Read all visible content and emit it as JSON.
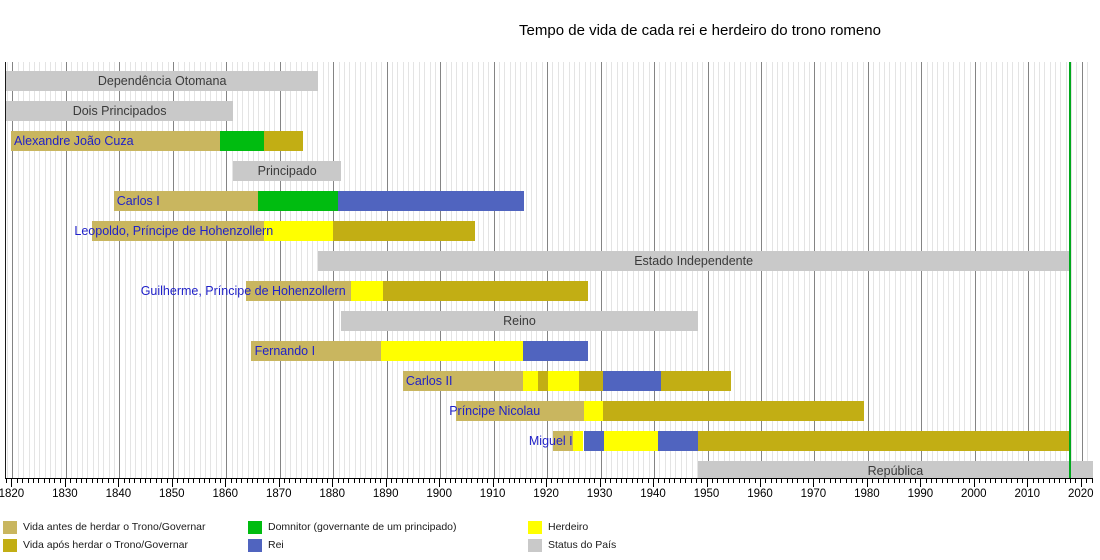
{
  "title": "Tempo de vida de cada rei e herdeiro do trono romeno",
  "chart_data": {
    "type": "timeline",
    "title": "Tempo de vida de cada rei e herdeiro do trono romeno",
    "axis": {
      "min_year": 1818.8,
      "max_year": 2022.1,
      "tick_years": [
        1820,
        1830,
        1840,
        1850,
        1860,
        1870,
        1880,
        1890,
        1900,
        1910,
        1920,
        1930,
        1940,
        1950,
        1960,
        1970,
        1980,
        1990,
        2000,
        2010,
        2020
      ],
      "minor_tick_step": 1,
      "grid": "vertical, every year; darker each decade"
    },
    "today_marker_year": 2017.6,
    "colors": {
      "before": "#C9B65F",
      "after": "#C2AE14",
      "domnitor": "#00BC10",
      "rei": "#5064BF",
      "herdeiro": "#FFFF00",
      "status": "#C9C9C9",
      "today_line": "#00A81C",
      "person_label": "#2021C8",
      "status_label": "#3A3A3A"
    },
    "rows": [
      {
        "label": "Dependência Otomana",
        "kind": "status",
        "segments": [
          {
            "start": 1818.8,
            "end": 1877.2,
            "type": "status"
          }
        ]
      },
      {
        "label": "Dois Principados",
        "kind": "status",
        "segments": [
          {
            "start": 1818.8,
            "end": 1861.3,
            "type": "status"
          }
        ]
      },
      {
        "label": "Alexandre João Cuza",
        "kind": "person",
        "label_year": 1820.3,
        "segments": [
          {
            "start": 1819.8,
            "end": 1858.9,
            "type": "before"
          },
          {
            "start": 1858.9,
            "end": 1867.1,
            "type": "domnitor"
          },
          {
            "start": 1867.1,
            "end": 1874.4,
            "type": "after"
          }
        ]
      },
      {
        "label": "Principado",
        "kind": "status",
        "segments": [
          {
            "start": 1861.3,
            "end": 1881.5,
            "type": "status"
          }
        ]
      },
      {
        "label": "Carlos I",
        "kind": "person",
        "label_year": 1839.5,
        "segments": [
          {
            "start": 1838.9,
            "end": 1866.0,
            "type": "before"
          },
          {
            "start": 1866.0,
            "end": 1880.9,
            "type": "domnitor"
          },
          {
            "start": 1880.9,
            "end": 1915.7,
            "type": "rei"
          }
        ]
      },
      {
        "label": "Leopoldo, Príncipe de Hohenzollern",
        "kind": "person",
        "label_year": 1831.6,
        "segments": [
          {
            "start": 1834.8,
            "end": 1867.1,
            "type": "before"
          },
          {
            "start": 1867.1,
            "end": 1880.0,
            "type": "herdeiro"
          },
          {
            "start": 1880.0,
            "end": 1906.5,
            "type": "after"
          }
        ]
      },
      {
        "label": "Estado Independente",
        "kind": "status",
        "segments": [
          {
            "start": 1877.2,
            "end": 2017.6,
            "type": "status"
          }
        ]
      },
      {
        "label": "Guilherme, Príncipe de Hohenzollern",
        "kind": "person",
        "label_year": 1844.0,
        "segments": [
          {
            "start": 1863.7,
            "end": 1883.4,
            "type": "before"
          },
          {
            "start": 1883.4,
            "end": 1889.3,
            "type": "herdeiro"
          },
          {
            "start": 1889.3,
            "end": 1927.7,
            "type": "after"
          }
        ]
      },
      {
        "label": "Reino",
        "kind": "status",
        "segments": [
          {
            "start": 1881.5,
            "end": 1948.2,
            "type": "status"
          }
        ]
      },
      {
        "label": "Fernando I",
        "kind": "person",
        "label_year": 1865.3,
        "segments": [
          {
            "start": 1864.7,
            "end": 1889.0,
            "type": "before"
          },
          {
            "start": 1889.0,
            "end": 1915.5,
            "type": "herdeiro"
          },
          {
            "start": 1915.5,
            "end": 1927.7,
            "type": "rei"
          }
        ]
      },
      {
        "label": "Carlos II",
        "kind": "person",
        "label_year": 1893.6,
        "segments": [
          {
            "start": 1893.1,
            "end": 1915.5,
            "type": "before"
          },
          {
            "start": 1915.5,
            "end": 1918.3,
            "type": "herdeiro"
          },
          {
            "start": 1918.3,
            "end": 1920.2,
            "type": "after"
          },
          {
            "start": 1920.2,
            "end": 1926.0,
            "type": "herdeiro"
          },
          {
            "start": 1926.0,
            "end": 1930.5,
            "type": "after"
          },
          {
            "start": 1930.5,
            "end": 1941.3,
            "type": "rei"
          },
          {
            "start": 1941.3,
            "end": 1954.4,
            "type": "after"
          }
        ]
      },
      {
        "label": "Príncipe Nicolau",
        "kind": "person",
        "label_year": 1901.7,
        "segments": [
          {
            "start": 1903.0,
            "end": 1926.9,
            "type": "before"
          },
          {
            "start": 1926.9,
            "end": 1930.5,
            "type": "herdeiro"
          },
          {
            "start": 1930.5,
            "end": 1979.3,
            "type": "after"
          }
        ]
      },
      {
        "label": "Miguel I",
        "kind": "person",
        "label_year": 1916.6,
        "segments": [
          {
            "start": 1921.1,
            "end": 1924.9,
            "type": "before"
          },
          {
            "start": 1924.9,
            "end": 1926.8,
            "type": "herdeiro"
          },
          {
            "start": 1926.8,
            "end": 1930.7,
            "type": "rei"
          },
          {
            "start": 1930.7,
            "end": 1940.8,
            "type": "herdeiro"
          },
          {
            "start": 1940.8,
            "end": 1948.2,
            "type": "rei"
          },
          {
            "start": 1948.2,
            "end": 2017.6,
            "type": "after"
          }
        ]
      },
      {
        "label": "República",
        "kind": "status",
        "segments": [
          {
            "start": 1948.2,
            "end": 2022.1,
            "type": "status"
          }
        ]
      }
    ]
  },
  "legend": {
    "items": [
      {
        "label": "Vida antes de herdar o Trono/Governar",
        "type": "before"
      },
      {
        "label": "Vida após herdar o Trono/Governar",
        "type": "after"
      },
      {
        "label": "Domnitor (governante de um principado)",
        "type": "domnitor"
      },
      {
        "label": "Rei",
        "type": "rei"
      },
      {
        "label": "Herdeiro",
        "type": "herdeiro"
      },
      {
        "label": "Status do País",
        "type": "status"
      }
    ]
  }
}
